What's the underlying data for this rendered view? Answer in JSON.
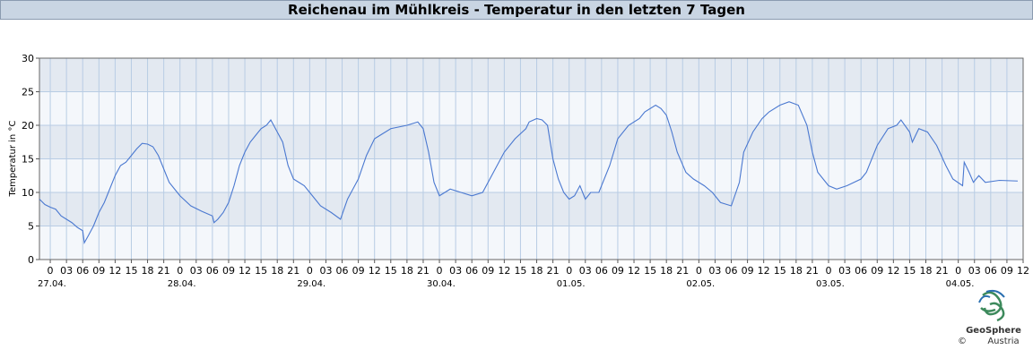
{
  "chart_data": {
    "type": "line",
    "title": "Reichenau im Mühlkreis - Temperatur in den letzten 7 Tagen",
    "y_label": "Temperatur in °C",
    "xlim": [
      -2,
      180
    ],
    "ylim": [
      0,
      30
    ],
    "yticks": [
      0,
      5,
      10,
      15,
      20,
      25,
      30
    ],
    "xticks": [
      0,
      {
        "value": 3,
        "label": "03"
      },
      {
        "value": 6,
        "label": "06"
      },
      {
        "value": 9,
        "label": "09"
      },
      12,
      15,
      18,
      21,
      {
        "value": 24,
        "label": "0"
      },
      {
        "value": 27,
        "label": "03"
      },
      {
        "value": 30,
        "label": "06"
      },
      {
        "value": 33,
        "label": "09"
      },
      {
        "value": 36,
        "label": "12"
      },
      {
        "value": 39,
        "label": "15"
      },
      {
        "value": 42,
        "label": "18"
      },
      {
        "value": 45,
        "label": "21"
      },
      {
        "value": 48,
        "label": "0"
      },
      {
        "value": 51,
        "label": "03"
      },
      {
        "value": 54,
        "label": "06"
      },
      {
        "value": 57,
        "label": "09"
      },
      {
        "value": 60,
        "label": "12"
      },
      {
        "value": 63,
        "label": "15"
      },
      {
        "value": 66,
        "label": "18"
      },
      {
        "value": 69,
        "label": "21"
      },
      {
        "value": 72,
        "label": "0"
      },
      {
        "value": 75,
        "label": "03"
      },
      {
        "value": 78,
        "label": "06"
      },
      {
        "value": 81,
        "label": "09"
      },
      {
        "value": 84,
        "label": "12"
      },
      {
        "value": 87,
        "label": "15"
      },
      {
        "value": 90,
        "label": "18"
      },
      {
        "value": 93,
        "label": "21"
      },
      {
        "value": 96,
        "label": "0"
      },
      {
        "value": 99,
        "label": "03"
      },
      {
        "value": 102,
        "label": "06"
      },
      {
        "value": 105,
        "label": "09"
      },
      {
        "value": 108,
        "label": "12"
      },
      {
        "value": 111,
        "label": "15"
      },
      {
        "value": 114,
        "label": "18"
      },
      {
        "value": 117,
        "label": "21"
      },
      {
        "value": 120,
        "label": "0"
      },
      {
        "value": 123,
        "label": "03"
      },
      {
        "value": 126,
        "label": "06"
      },
      {
        "value": 129,
        "label": "09"
      },
      {
        "value": 132,
        "label": "12"
      },
      {
        "value": 135,
        "label": "15"
      },
      {
        "value": 138,
        "label": "18"
      },
      {
        "value": 141,
        "label": "21"
      },
      {
        "value": 144,
        "label": "0"
      },
      {
        "value": 147,
        "label": "03"
      },
      {
        "value": 150,
        "label": "06"
      },
      {
        "value": 153,
        "label": "09"
      },
      {
        "value": 156,
        "label": "12"
      },
      {
        "value": 159,
        "label": "15"
      },
      {
        "value": 162,
        "label": "18"
      },
      {
        "value": 165,
        "label": "21"
      },
      {
        "value": 168,
        "label": "0"
      },
      {
        "value": 171,
        "label": "03"
      },
      {
        "value": 174,
        "label": "06"
      },
      {
        "value": 177,
        "label": "09"
      },
      {
        "value": 180,
        "label": "12"
      }
    ],
    "xdate_labels": [
      {
        "value": 0,
        "label": "27.04."
      },
      {
        "value": 24,
        "label": "28.04."
      },
      {
        "value": 48,
        "label": "29.04."
      },
      {
        "value": 72,
        "label": "30.04."
      },
      {
        "value": 96,
        "label": "01.05."
      },
      {
        "value": 120,
        "label": "02.05."
      },
      {
        "value": 144,
        "label": "03.05."
      },
      {
        "value": 168,
        "label": "04.05."
      }
    ],
    "grid": true,
    "series": [
      {
        "color": "#4a78d0",
        "x": [
          -2,
          -1,
          0,
          1,
          2,
          3,
          4,
          5,
          6,
          6.3,
          7,
          8,
          9,
          10,
          11,
          12,
          13,
          14,
          15,
          16,
          17,
          18,
          19,
          20,
          21,
          22,
          23,
          24,
          26,
          28,
          30,
          30.3,
          31,
          32,
          33,
          34,
          35,
          36,
          37,
          38,
          39,
          40,
          40.8,
          42,
          43,
          44,
          45,
          46,
          47,
          48,
          50,
          52,
          53.7,
          55,
          56,
          57,
          58.5,
          60,
          61,
          63,
          66,
          68,
          69,
          70,
          71,
          72,
          74,
          76,
          78,
          80,
          82,
          84,
          86,
          88,
          88.6,
          90,
          91,
          92,
          93,
          94,
          95,
          96,
          97,
          98,
          99,
          100,
          101.5,
          103.5,
          105,
          107,
          109,
          110,
          112,
          113,
          114,
          115,
          116,
          117.6,
          119,
          120,
          121,
          122.5,
          124,
          126,
          127.5,
          128.3,
          130,
          131.7,
          133,
          135,
          136.7,
          138.4,
          140,
          141,
          142,
          144,
          145.5,
          147.4,
          150,
          151,
          153,
          155,
          156.6,
          157.4,
          159,
          159.5,
          160.7,
          162.3,
          164,
          165.7,
          167,
          168.8,
          169.1,
          170,
          170.8,
          171.8,
          173,
          175.6,
          179
        ],
        "values": [
          9,
          8.2,
          7.8,
          7.5,
          6.5,
          6,
          5.5,
          4.8,
          4.3,
          2.5,
          3.5,
          5,
          7,
          8.5,
          10.5,
          12.5,
          14,
          14.5,
          15.5,
          16.5,
          17.3,
          17.2,
          16.8,
          15.5,
          13.5,
          11.5,
          10.5,
          9.5,
          8,
          7.2,
          6.5,
          5.5,
          6,
          7,
          8.5,
          11,
          14,
          16,
          17.5,
          18.5,
          19.5,
          20,
          20.8,
          19,
          17.5,
          14,
          12,
          11.5,
          11,
          10,
          8,
          7,
          6,
          9,
          10.5,
          12,
          15.5,
          18,
          18.5,
          19.5,
          20,
          20.5,
          19.5,
          16,
          11.5,
          9.5,
          10.5,
          10,
          9.5,
          10,
          13,
          16,
          18,
          19.5,
          20.5,
          21,
          20.8,
          20,
          15,
          12,
          10,
          9,
          9.5,
          11,
          9,
          10,
          10,
          14,
          18,
          20,
          21,
          22,
          23,
          22.5,
          21.5,
          19,
          16,
          13,
          12,
          11.5,
          11,
          10,
          8.5,
          8,
          11.5,
          16,
          19,
          21,
          22,
          23,
          23.5,
          23,
          20,
          16,
          13,
          11,
          10.5,
          11,
          12,
          13,
          17,
          19.5,
          20,
          20.8,
          19,
          17.5,
          19.5,
          19,
          17,
          14,
          12,
          11,
          14.5,
          13,
          11.5,
          12.5,
          11.5,
          11.8,
          11.7
        ]
      }
    ]
  },
  "logo": {
    "name": "GeoSphere",
    "subtitle": "Austria",
    "copyright": "©"
  }
}
